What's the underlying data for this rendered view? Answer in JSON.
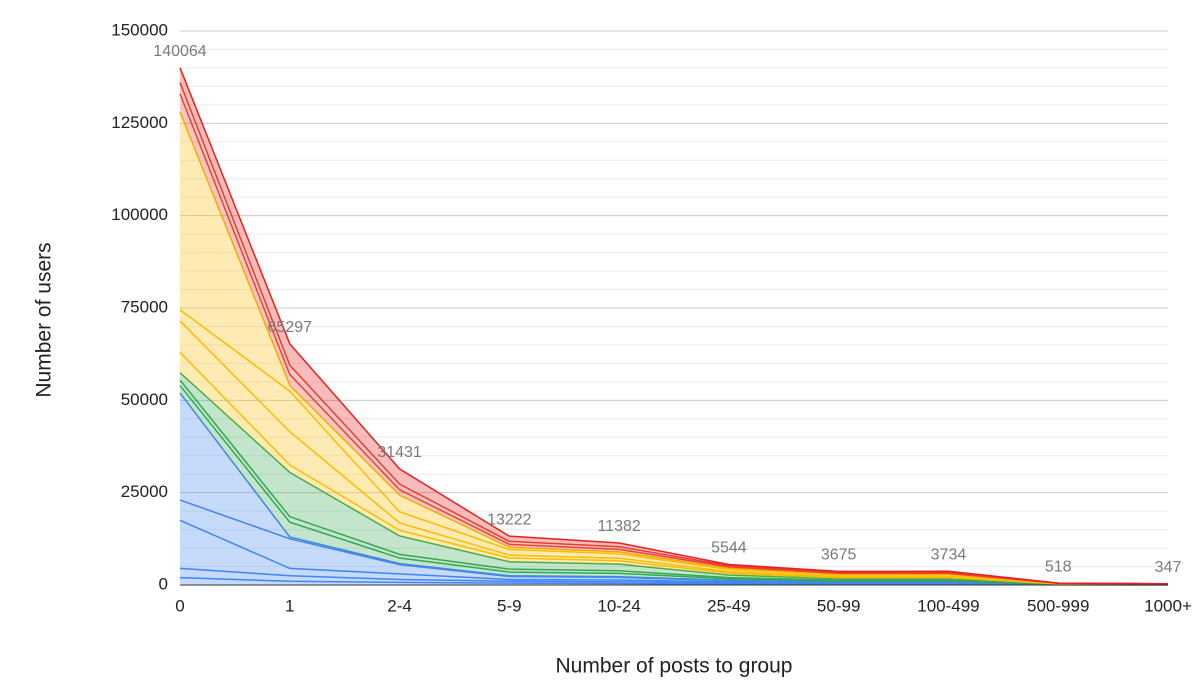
{
  "chart_data": {
    "type": "stacked_area",
    "x_label": "Number of posts to group",
    "y_label": "Number of users",
    "categories": [
      "0",
      "1",
      "2-4",
      "5-9",
      "10-24",
      "25-49",
      "50-99",
      "100-499",
      "500-999",
      "1000+"
    ],
    "series": [
      {
        "color": "#4285f4",
        "values": [
          2000,
          1000,
          700,
          500,
          400,
          250,
          180,
          180,
          30,
          25
        ]
      },
      {
        "color": "#4285f4",
        "values": [
          2500,
          1500,
          800,
          500,
          450,
          250,
          170,
          170,
          30,
          20
        ]
      },
      {
        "color": "#4285f4",
        "values": [
          13000,
          2000,
          1500,
          500,
          500,
          300,
          200,
          200,
          40,
          30
        ]
      },
      {
        "color": "#4285f4",
        "values": [
          5500,
          8000,
          2500,
          800,
          700,
          400,
          250,
          250,
          40,
          25
        ]
      },
      {
        "color": "#4285f4",
        "values": [
          29000,
          500,
          300,
          200,
          200,
          100,
          60,
          60,
          10,
          5
        ]
      },
      {
        "color": "#34a853",
        "values": [
          2000,
          4000,
          1500,
          1000,
          900,
          400,
          250,
          250,
          30,
          20
        ]
      },
      {
        "color": "#34a853",
        "values": [
          1500,
          1500,
          1000,
          800,
          700,
          300,
          200,
          200,
          30,
          20
        ]
      },
      {
        "color": "#34a853",
        "values": [
          2000,
          12000,
          5000,
          2000,
          1800,
          700,
          400,
          400,
          50,
          30
        ]
      },
      {
        "color": "#fbbc04",
        "values": [
          5500,
          2000,
          1500,
          1000,
          900,
          500,
          300,
          300,
          40,
          30
        ]
      },
      {
        "color": "#fbbc04",
        "values": [
          8500,
          9000,
          2000,
          800,
          700,
          400,
          300,
          300,
          40,
          30
        ]
      },
      {
        "color": "#fbbc04",
        "values": [
          3000,
          11000,
          3000,
          1500,
          1200,
          600,
          400,
          400,
          50,
          30
        ]
      },
      {
        "color": "#fbbc04",
        "values": [
          53500,
          1500,
          4500,
          600,
          500,
          300,
          250,
          250,
          40,
          30
        ]
      },
      {
        "color": "#ea4335",
        "values": [
          5000,
          3000,
          1500,
          800,
          700,
          400,
          200,
          200,
          40,
          20
        ]
      },
      {
        "color": "#ea4335",
        "values": [
          3000,
          2500,
          1500,
          800,
          700,
          300,
          200,
          200,
          40,
          20
        ]
      },
      {
        "color": "#e8201c",
        "values": [
          4064,
          5797,
          4131,
          1422,
          1032,
          344,
          315,
          374,
          8,
          12
        ]
      }
    ],
    "annotations": [
      "140064",
      "65297",
      "31431",
      "13222",
      "11382",
      "5544",
      "3675",
      "3734",
      "518",
      "347"
    ],
    "ylim": [
      0,
      150000
    ],
    "yticks": [
      0,
      25000,
      50000,
      75000,
      100000,
      125000,
      150000
    ],
    "minor_yticks": [
      5000,
      10000,
      15000,
      20000,
      30000,
      35000,
      40000,
      45000,
      55000,
      60000,
      65000,
      70000,
      80000,
      85000,
      90000,
      95000,
      105000,
      110000,
      115000,
      120000,
      130000,
      135000,
      140000,
      145000
    ],
    "grid": true
  }
}
